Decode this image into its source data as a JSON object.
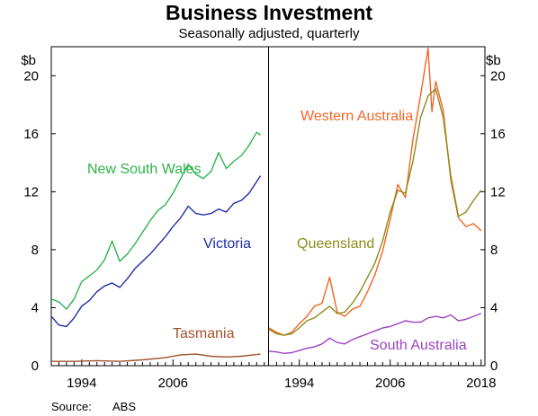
{
  "colors": {
    "nsw": "#2db34a",
    "vic": "#1f2da6",
    "tas": "#a0522d",
    "wa": "#f26522",
    "qld": "#8c8c1a",
    "sa": "#9a44c0",
    "axis": "#000000"
  },
  "chart_data": {
    "type": "line",
    "title": "Business Investment",
    "subtitle": "Seasonally adjusted, quarterly",
    "source_label": "Source:",
    "source": "ABS",
    "unit_left": "$b",
    "unit_right": "$b",
    "ylim": [
      0,
      22
    ],
    "yticks": [
      "0",
      "4",
      "8",
      "12",
      "16",
      "20"
    ],
    "xlim": [
      1990,
      2018.5
    ],
    "grid": false,
    "panels": [
      {
        "xticks": [
          "1994",
          "2006"
        ],
        "series": [
          {
            "name": "New South Wales",
            "color_key": "nsw",
            "x": [
              1990,
              1991,
              1992,
              1993,
              1994,
              1995,
              1996,
              1997,
              1998,
              1999,
              2000,
              2001,
              2002,
              2003,
              2004,
              2005,
              2006,
              2007,
              2008,
              2009,
              2010,
              2011,
              2012,
              2013,
              2014,
              2015,
              2016,
              2017,
              2017.5
            ],
            "y": [
              4.6,
              4.4,
              3.9,
              4.6,
              5.8,
              6.2,
              6.6,
              7.3,
              8.6,
              7.2,
              7.7,
              8.4,
              9.2,
              10.0,
              10.7,
              11.1,
              11.9,
              12.9,
              13.9,
              13.2,
              12.9,
              13.4,
              14.7,
              13.6,
              14.1,
              14.5,
              15.2,
              16.1,
              15.9
            ]
          },
          {
            "name": "Victoria",
            "color_key": "vic",
            "x": [
              1990,
              1991,
              1992,
              1993,
              1994,
              1995,
              1996,
              1997,
              1998,
              1999,
              2000,
              2001,
              2002,
              2003,
              2004,
              2005,
              2006,
              2007,
              2008,
              2009,
              2010,
              2011,
              2012,
              2013,
              2014,
              2015,
              2016,
              2017,
              2017.5
            ],
            "y": [
              3.4,
              2.8,
              2.7,
              3.3,
              4.1,
              4.5,
              5.1,
              5.5,
              5.7,
              5.4,
              6.0,
              6.7,
              7.2,
              7.7,
              8.3,
              8.9,
              9.6,
              10.2,
              11.0,
              10.5,
              10.4,
              10.5,
              10.8,
              10.6,
              11.2,
              11.4,
              11.9,
              12.7,
              13.1
            ]
          },
          {
            "name": "Tasmania",
            "color_key": "tas",
            "x": [
              1990,
              1993,
              1996,
              1999,
              2002,
              2005,
              2007,
              2009,
              2011,
              2013,
              2015,
              2017.5
            ],
            "y": [
              0.3,
              0.3,
              0.35,
              0.3,
              0.4,
              0.55,
              0.75,
              0.8,
              0.65,
              0.6,
              0.65,
              0.8
            ]
          }
        ]
      },
      {
        "xticks": [
          "1994",
          "2006",
          "2018"
        ],
        "series": [
          {
            "name": "Western Australia",
            "color_key": "wa",
            "x": [
              1990,
              1991,
              1992,
              1993,
              1994,
              1995,
              1996,
              1997,
              1998,
              1999,
              2000,
              2001,
              2002,
              2003,
              2004,
              2005,
              2006,
              2007,
              2008,
              2009,
              2010,
              2011,
              2011.5,
              2012,
              2013,
              2014,
              2015,
              2016,
              2017,
              2018
            ],
            "y": [
              2.6,
              2.3,
              2.1,
              2.3,
              2.9,
              3.4,
              4.1,
              4.3,
              6.1,
              3.7,
              3.4,
              3.9,
              4.1,
              5.1,
              6.3,
              7.9,
              10.1,
              12.5,
              11.6,
              15.6,
              18.6,
              21.9,
              17.5,
              19.6,
              17.6,
              12.8,
              10.2,
              9.6,
              9.8,
              9.3
            ]
          },
          {
            "name": "Queensland",
            "color_key": "qld",
            "x": [
              1990,
              1991,
              1992,
              1993,
              1994,
              1995,
              1996,
              1997,
              1998,
              1999,
              2000,
              2001,
              2002,
              2003,
              2004,
              2005,
              2006,
              2007,
              2008,
              2009,
              2010,
              2011,
              2012,
              2013,
              2014,
              2015,
              2016,
              2017,
              2018
            ],
            "y": [
              2.5,
              2.2,
              2.1,
              2.2,
              2.6,
              3.1,
              3.3,
              3.7,
              4.1,
              3.6,
              3.7,
              4.3,
              5.1,
              6.1,
              7.1,
              8.6,
              10.6,
              12.1,
              11.9,
              14.1,
              17.1,
              18.6,
              19.1,
              17.1,
              13.1,
              10.3,
              10.6,
              11.4,
              12.1
            ]
          },
          {
            "name": "South Australia",
            "color_key": "sa",
            "x": [
              1990,
              1991,
              1992,
              1993,
              1994,
              1995,
              1996,
              1997,
              1998,
              1999,
              2000,
              2001,
              2002,
              2003,
              2004,
              2005,
              2006,
              2007,
              2008,
              2009,
              2010,
              2011,
              2012,
              2013,
              2014,
              2015,
              2016,
              2017,
              2018
            ],
            "y": [
              1.0,
              0.95,
              0.85,
              0.9,
              1.05,
              1.2,
              1.3,
              1.5,
              1.9,
              1.6,
              1.5,
              1.8,
              2.0,
              2.2,
              2.4,
              2.6,
              2.7,
              2.9,
              3.1,
              3.0,
              3.0,
              3.3,
              3.4,
              3.3,
              3.5,
              3.1,
              3.2,
              3.4,
              3.6
            ]
          }
        ]
      }
    ]
  }
}
